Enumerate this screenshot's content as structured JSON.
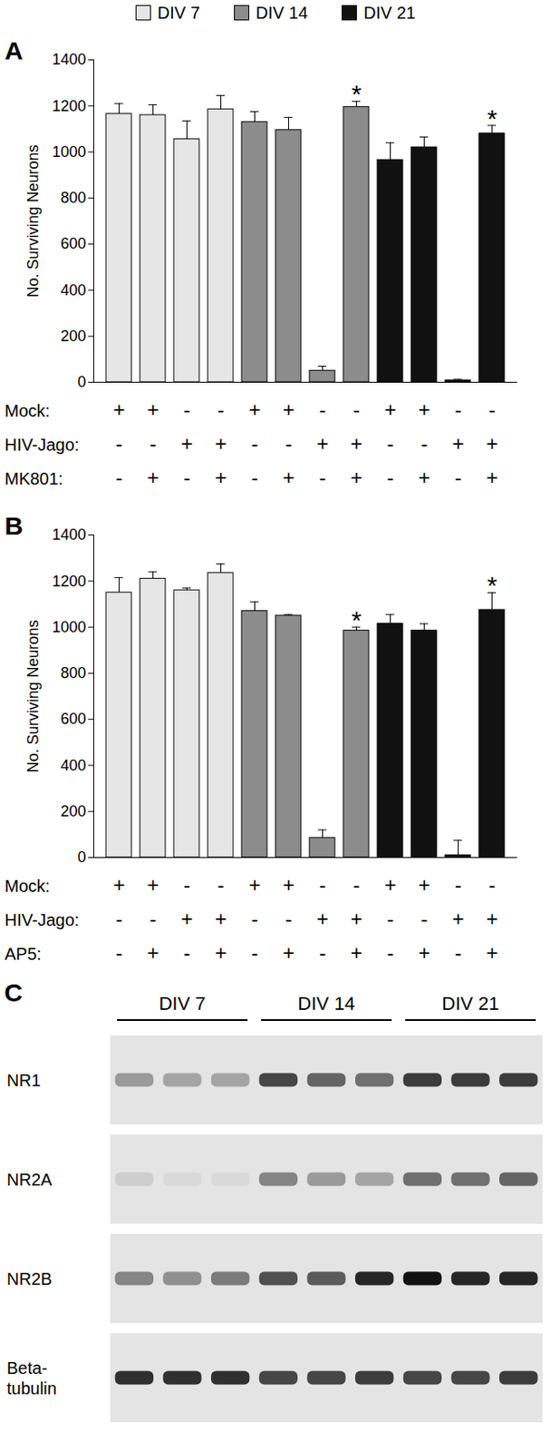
{
  "chart_data": [
    {
      "panel": "A",
      "type": "bar",
      "legend": "top",
      "ylabel": "No. Surviving Neurons",
      "categories": [
        null,
        null,
        null,
        null,
        null,
        null,
        null,
        null,
        null,
        null,
        null,
        null
      ],
      "ylim": [
        0,
        1400
      ],
      "yticks": [
        0,
        200,
        400,
        600,
        800,
        1000,
        1200,
        1400
      ],
      "series": [
        {
          "name": "DIV 7",
          "color": "#e6e6e6",
          "values": [
            1165,
            1160,
            1055,
            1185,
            null,
            null,
            null,
            null,
            null,
            null,
            null,
            null
          ],
          "errors": [
            45,
            45,
            80,
            60,
            null,
            null,
            null,
            null,
            null,
            null,
            null,
            null
          ]
        },
        {
          "name": "DIV 14",
          "color": "#8c8c8c",
          "values": [
            null,
            null,
            null,
            null,
            1130,
            1095,
            50,
            1195,
            null,
            null,
            null,
            null
          ],
          "errors": [
            null,
            null,
            null,
            null,
            45,
            55,
            20,
            25,
            null,
            null,
            null,
            null
          ]
        },
        {
          "name": "DIV 21",
          "color": "#111111",
          "values": [
            null,
            null,
            null,
            null,
            null,
            null,
            null,
            null,
            965,
            1020,
            8,
            1080
          ],
          "errors": [
            null,
            null,
            null,
            null,
            null,
            null,
            null,
            null,
            75,
            45,
            5,
            35
          ]
        }
      ],
      "annotations": [
        null,
        null,
        null,
        null,
        null,
        null,
        null,
        "*",
        null,
        null,
        null,
        "*"
      ],
      "treatments": [
        {
          "label": "Mock:",
          "marks": [
            "+",
            "+",
            "-",
            "-",
            "+",
            "+",
            "-",
            "-",
            "+",
            "+",
            "-",
            "-"
          ]
        },
        {
          "label": "HIV-Jago:",
          "marks": [
            "-",
            "-",
            "+",
            "+",
            "-",
            "-",
            "+",
            "+",
            "-",
            "-",
            "+",
            "+"
          ]
        },
        {
          "label": "MK801:",
          "marks": [
            "-",
            "+",
            "-",
            "+",
            "-",
            "+",
            "-",
            "+",
            "-",
            "+",
            "-",
            "+"
          ]
        }
      ]
    },
    {
      "panel": "B",
      "type": "bar",
      "ylabel": "No. Surviving Neurons",
      "categories": [
        null,
        null,
        null,
        null,
        null,
        null,
        null,
        null,
        null,
        null,
        null,
        null
      ],
      "ylim": [
        0,
        1400
      ],
      "yticks": [
        0,
        200,
        400,
        600,
        800,
        1000,
        1200,
        1400
      ],
      "series": [
        {
          "name": "DIV 7",
          "color": "#e6e6e6",
          "values": [
            1150,
            1210,
            1160,
            1235,
            null,
            null,
            null,
            null,
            null,
            null,
            null,
            null
          ],
          "errors": [
            65,
            30,
            10,
            40,
            null,
            null,
            null,
            null,
            null,
            null,
            null,
            null
          ]
        },
        {
          "name": "DIV 14",
          "color": "#8c8c8c",
          "values": [
            null,
            null,
            null,
            null,
            1070,
            1050,
            85,
            985,
            null,
            null,
            null,
            null
          ],
          "errors": [
            null,
            null,
            null,
            null,
            40,
            5,
            35,
            15,
            null,
            null,
            null,
            null
          ]
        },
        {
          "name": "DIV 21",
          "color": "#111111",
          "values": [
            null,
            null,
            null,
            null,
            null,
            null,
            null,
            null,
            1015,
            985,
            10,
            1075
          ],
          "errors": [
            null,
            null,
            null,
            null,
            null,
            null,
            null,
            null,
            40,
            30,
            65,
            75
          ]
        }
      ],
      "annotations": [
        null,
        null,
        null,
        null,
        null,
        null,
        null,
        "*",
        null,
        null,
        null,
        "*"
      ],
      "treatments": [
        {
          "label": "Mock:",
          "marks": [
            "+",
            "+",
            "-",
            "-",
            "+",
            "+",
            "-",
            "-",
            "+",
            "+",
            "-",
            "-"
          ]
        },
        {
          "label": "HIV-Jago:",
          "marks": [
            "-",
            "-",
            "+",
            "+",
            "-",
            "-",
            "+",
            "+",
            "-",
            "-",
            "+",
            "+"
          ]
        },
        {
          "label": "AP5:",
          "marks": [
            "-",
            "+",
            "-",
            "+",
            "-",
            "+",
            "-",
            "+",
            "-",
            "+",
            "-",
            "+"
          ]
        }
      ]
    }
  ],
  "blot": {
    "panel": "C",
    "groups": [
      "DIV 7",
      "DIV 14",
      "DIV 21"
    ],
    "lanes_per_group": 3,
    "rows": [
      {
        "label": "NR1",
        "band_intensity": [
          0.35,
          0.3,
          0.3,
          0.75,
          0.6,
          0.55,
          0.8,
          0.8,
          0.8
        ]
      },
      {
        "label": "NR2A",
        "band_intensity": [
          0.1,
          0.05,
          0.05,
          0.45,
          0.35,
          0.3,
          0.55,
          0.55,
          0.6
        ]
      },
      {
        "label": "NR2B",
        "band_intensity": [
          0.45,
          0.4,
          0.5,
          0.7,
          0.65,
          0.9,
          1,
          0.9,
          0.9
        ]
      },
      {
        "label": "Beta-tubulin",
        "band_intensity": [
          0.85,
          0.85,
          0.85,
          0.75,
          0.75,
          0.8,
          0.75,
          0.75,
          0.8
        ]
      }
    ]
  }
}
